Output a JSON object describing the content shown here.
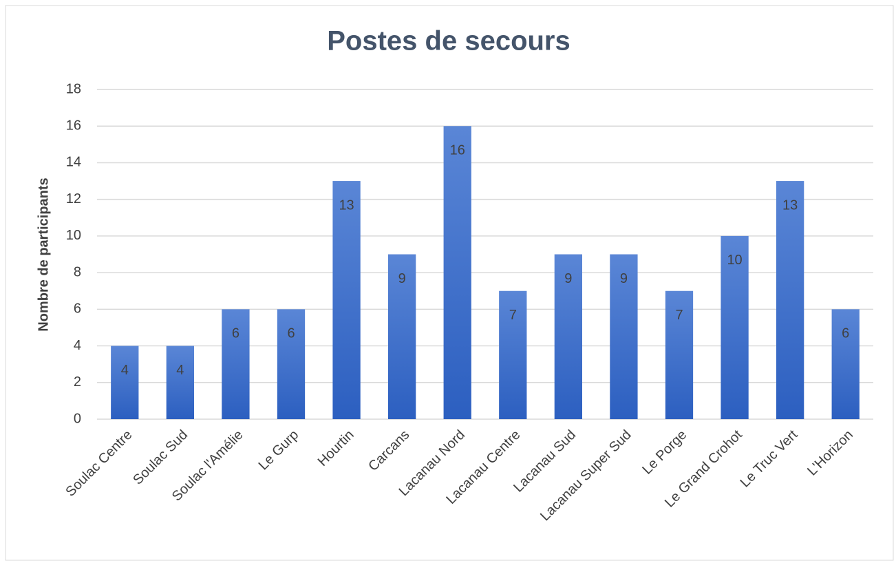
{
  "chart_data": {
    "type": "bar",
    "title": "Postes de secours",
    "y_label": "Nombre de participants",
    "categories": [
      "Soulac Centre",
      "Soulac Sud",
      "Soulac l'Amélie",
      "Le Gurp",
      "Hourtin",
      "Carcans",
      "Lacanau Nord",
      "Lacanau Centre",
      "Lacanau Sud",
      "Lacanau Super Sud",
      "Le Porge",
      "Le Grand Crohot",
      "Le Truc Vert",
      "L'Horizon"
    ],
    "values": [
      4,
      4,
      6,
      6,
      13,
      9,
      16,
      7,
      9,
      9,
      7,
      10,
      13,
      6
    ],
    "color": "#3a6fcf",
    "ylim": [
      0,
      18
    ],
    "yticks": [
      0,
      2,
      4,
      6,
      8,
      10,
      12,
      14,
      16,
      18
    ],
    "grid": true
  }
}
